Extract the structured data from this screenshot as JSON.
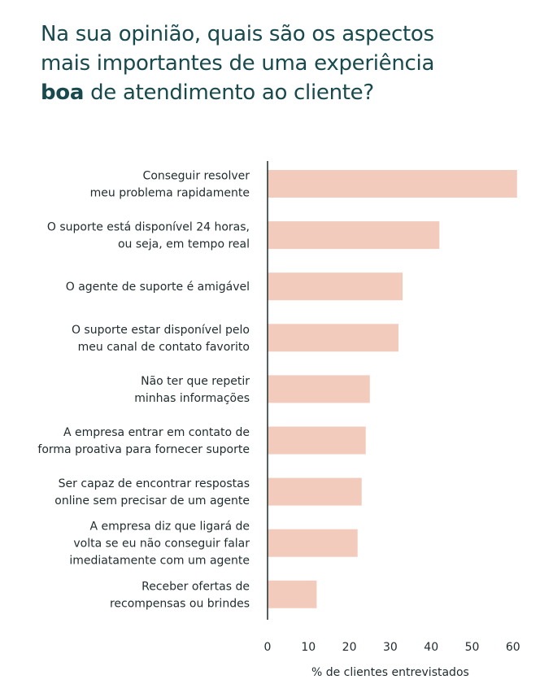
{
  "title": {
    "line1": "Na sua opinião, quais são os aspectos",
    "line2": "mais importantes de uma experiência",
    "line3_bold": "boa",
    "line3_rest": " de atendimento ao cliente?"
  },
  "chart_data": {
    "type": "bar",
    "orientation": "horizontal",
    "categories": [
      [
        "Conseguir resolver",
        "meu problema rapidamente"
      ],
      [
        "O suporte está disponível 24 horas,",
        "ou seja, em tempo real"
      ],
      [
        "O agente de suporte é amigável"
      ],
      [
        "O suporte estar disponível pelo",
        "meu canal de contato favorito"
      ],
      [
        "Não ter que repetir",
        "minhas informações"
      ],
      [
        "A empresa entrar em contato de",
        "forma proativa para fornecer suporte"
      ],
      [
        "Ser capaz de encontrar respostas",
        "online sem precisar de um agente"
      ],
      [
        "A empresa diz que ligará de",
        "volta se eu não conseguir falar",
        "imediatamente com um agente"
      ],
      [
        "Receber ofertas de",
        "recompensas ou brindes"
      ]
    ],
    "values": [
      61,
      42,
      33,
      32,
      25,
      24,
      23,
      22,
      12
    ],
    "xlabel": "% de clientes entrevistados",
    "ylabel": "",
    "xlim": [
      0,
      60
    ],
    "xticks": [
      0,
      10,
      20,
      30,
      40,
      50,
      60
    ],
    "grid": false,
    "bar_color": "#f3cbbd",
    "title_color": "#17494d"
  }
}
